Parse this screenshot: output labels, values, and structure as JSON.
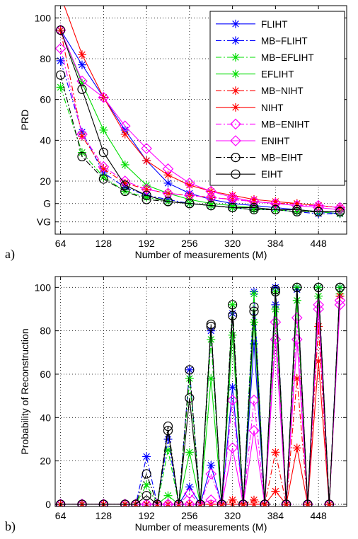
{
  "chart_data": [
    {
      "type": "line",
      "panel_label": "a)",
      "xlabel": "Number of measurements (M)",
      "ylabel": "PRD",
      "xlim": [
        56,
        490
      ],
      "ylim": [
        -6,
        106
      ],
      "xticks": [
        64,
        128,
        192,
        256,
        320,
        384,
        448
      ],
      "yticks": [
        {
          "value": 100,
          "label": "100"
        },
        {
          "value": 80,
          "label": "80"
        },
        {
          "value": 60,
          "label": "60"
        },
        {
          "value": 40,
          "label": "40"
        },
        {
          "value": 20,
          "label": "20"
        },
        {
          "value": 9,
          "label": "G"
        },
        {
          "value": 0,
          "label": "VG"
        }
      ],
      "grid": true,
      "legend_position": "top-right",
      "x": [
        64,
        96,
        128,
        160,
        192,
        224,
        256,
        288,
        320,
        352,
        384,
        416,
        448,
        480
      ],
      "series": [
        {
          "name": "FLIHT",
          "color": "#0000ff",
          "dash": "solid",
          "marker": "star",
          "values": [
            94,
            77,
            61,
            45,
            30,
            19,
            14,
            11,
            9,
            8,
            7,
            6,
            5,
            4
          ]
        },
        {
          "name": "MB−FLIHT",
          "color": "#0000ff",
          "dash": "dashdot",
          "marker": "star",
          "values": [
            79,
            44,
            24,
            17,
            13,
            11,
            9,
            8,
            7,
            6,
            6,
            5,
            4,
            4
          ]
        },
        {
          "name": "MB−EFLIHT",
          "color": "#00dd00",
          "dash": "dashdot",
          "marker": "star",
          "values": [
            66,
            34,
            22,
            15,
            12,
            10,
            9,
            8,
            7,
            6,
            6,
            5,
            5,
            4
          ]
        },
        {
          "name": "EFLIHT",
          "color": "#00dd00",
          "dash": "solid",
          "marker": "star",
          "values": [
            94,
            68,
            45,
            28,
            18,
            14,
            11,
            9,
            8,
            7,
            6,
            6,
            5,
            5
          ]
        },
        {
          "name": "MB−NIHT",
          "color": "#ff0000",
          "dash": "dashdot",
          "marker": "star",
          "values": [
            94,
            42,
            26,
            19,
            16,
            14,
            13,
            12,
            11,
            10,
            9,
            9,
            8,
            7
          ]
        },
        {
          "name": "NIHT",
          "color": "#ff0000",
          "dash": "solid",
          "marker": "star",
          "values": [
            111,
            82,
            61,
            43,
            30,
            23,
            18,
            15,
            13,
            11,
            10,
            9,
            8,
            7
          ]
        },
        {
          "name": "MB−ENIHT",
          "color": "#ff00ff",
          "dash": "dashdot",
          "marker": "diamond",
          "values": [
            85,
            43,
            27,
            20,
            16,
            14,
            13,
            12,
            11,
            10,
            9,
            8,
            8,
            7
          ]
        },
        {
          "name": "ENIHT",
          "color": "#ff00ff",
          "dash": "solid",
          "marker": "diamond",
          "values": [
            94,
            69,
            61,
            47,
            36,
            26,
            19,
            15,
            12,
            10,
            9,
            8,
            7,
            6
          ]
        },
        {
          "name": "MB−EIHT",
          "color": "#000000",
          "dash": "dashdot",
          "marker": "circle",
          "values": [
            72,
            32,
            21,
            15,
            11,
            10,
            9,
            8,
            7,
            6,
            6,
            5,
            5,
            5
          ]
        },
        {
          "name": "EIHT",
          "color": "#000000",
          "dash": "solid",
          "marker": "circle",
          "values": [
            94,
            65,
            34,
            18,
            13,
            10,
            9,
            8,
            7,
            7,
            6,
            6,
            5,
            5
          ]
        }
      ]
    },
    {
      "type": "line",
      "panel_label": "b)",
      "xlabel": "Number of measurements (M)",
      "ylabel": "Probability of Reconstruction",
      "xlim": [
        56,
        490
      ],
      "ylim": [
        -1,
        105
      ],
      "xticks": [
        64,
        128,
        192,
        256,
        320,
        384,
        448
      ],
      "yticks": [
        {
          "value": 0,
          "label": "0"
        },
        {
          "value": 20,
          "label": "20"
        },
        {
          "value": 40,
          "label": "40"
        },
        {
          "value": 60,
          "label": "60"
        },
        {
          "value": 80,
          "label": "80"
        },
        {
          "value": 100,
          "label": "100"
        }
      ],
      "grid": true,
      "x": [
        64,
        96,
        128,
        160,
        176,
        192,
        208,
        224,
        240,
        256,
        272,
        288,
        304,
        320,
        336,
        352,
        368,
        384,
        400,
        416,
        432,
        448,
        464,
        480
      ],
      "series": [
        {
          "name": "FLIHT",
          "color": "#0000ff",
          "dash": "solid",
          "marker": "star",
          "values": [
            0,
            0,
            0,
            0,
            0,
            0,
            0,
            0,
            0,
            8,
            0,
            18,
            0,
            54,
            0,
            74,
            0,
            92,
            0,
            99,
            0,
            100,
            0,
            100
          ]
        },
        {
          "name": "MB−FLIHT",
          "color": "#0000ff",
          "dash": "dashdot",
          "marker": "star",
          "values": [
            0,
            0,
            0,
            0,
            0,
            22,
            0,
            30,
            0,
            62,
            0,
            80,
            0,
            88,
            0,
            98,
            0,
            100,
            0,
            100,
            0,
            100,
            0,
            100
          ]
        },
        {
          "name": "MB−EFLIHT",
          "color": "#00dd00",
          "dash": "dashdot",
          "marker": "star",
          "values": [
            0,
            0,
            0,
            0,
            0,
            9,
            0,
            25,
            0,
            58,
            0,
            76,
            0,
            92,
            0,
            97,
            0,
            98,
            0,
            100,
            0,
            100,
            0,
            100
          ]
        },
        {
          "name": "EFLIHT",
          "color": "#00dd00",
          "dash": "solid",
          "marker": "star",
          "values": [
            0,
            0,
            0,
            0,
            0,
            0,
            0,
            4,
            0,
            24,
            0,
            58,
            0,
            78,
            0,
            84,
            0,
            90,
            0,
            94,
            0,
            96,
            0,
            97
          ]
        },
        {
          "name": "MB−NIHT",
          "color": "#ff0000",
          "dash": "dashdot",
          "marker": "star",
          "values": [
            0,
            0,
            0,
            0,
            0,
            0,
            0,
            0,
            0,
            0,
            0,
            0,
            0,
            2,
            0,
            2,
            0,
            24,
            0,
            58,
            0,
            82,
            0,
            96
          ]
        },
        {
          "name": "NIHT",
          "color": "#ff0000",
          "dash": "solid",
          "marker": "star",
          "values": [
            0,
            0,
            0,
            0,
            0,
            0,
            0,
            0,
            0,
            0,
            0,
            0,
            0,
            0,
            0,
            0,
            0,
            6,
            0,
            26,
            0,
            66,
            0,
            96
          ]
        },
        {
          "name": "MB−ENIHT",
          "color": "#ff00ff",
          "dash": "dashdot",
          "marker": "diamond",
          "values": [
            0,
            0,
            0,
            0,
            0,
            0,
            0,
            0,
            0,
            5,
            0,
            14,
            0,
            48,
            0,
            48,
            0,
            84,
            0,
            86,
            0,
            92,
            0,
            94
          ]
        },
        {
          "name": "ENIHT",
          "color": "#ff00ff",
          "dash": "solid",
          "marker": "diamond",
          "values": [
            0,
            0,
            0,
            0,
            0,
            0,
            0,
            0,
            0,
            0,
            0,
            2,
            0,
            26,
            0,
            34,
            0,
            76,
            0,
            76,
            0,
            90,
            0,
            92
          ]
        },
        {
          "name": "MB−EIHT",
          "color": "#000000",
          "dash": "dashdot",
          "marker": "circle",
          "values": [
            0,
            0,
            0,
            0,
            0,
            14,
            0,
            36,
            0,
            62,
            0,
            83,
            0,
            92,
            0,
            91,
            0,
            99,
            0,
            100,
            0,
            100,
            0,
            100
          ]
        },
        {
          "name": "EIHT",
          "color": "#000000",
          "dash": "solid",
          "marker": "circle",
          "values": [
            0,
            0,
            0,
            0,
            0,
            4,
            0,
            34,
            0,
            49,
            0,
            82,
            0,
            87,
            0,
            89,
            0,
            98,
            0,
            100,
            0,
            100,
            0,
            100
          ]
        }
      ]
    }
  ]
}
